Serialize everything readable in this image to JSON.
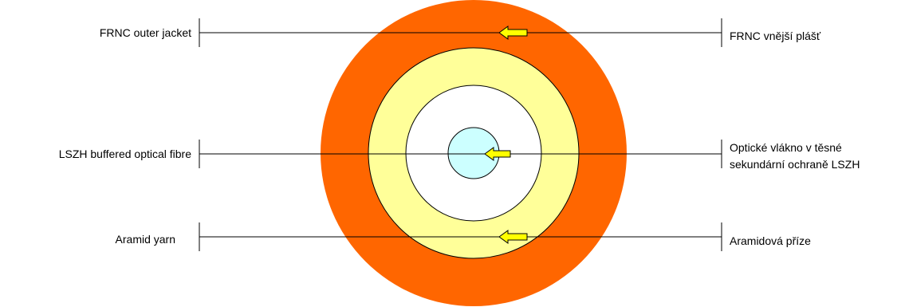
{
  "labels": {
    "outer_jacket_en": "FRNC outer jacket",
    "outer_jacket_cz": "FRNC vnější plášť",
    "buffered_fibre_en": "LSZH buffered optical fibre",
    "buffered_fibre_cz_line1": "Optické vlákno v těsné",
    "buffered_fibre_cz_line2": "sekundární ochraně LSZH",
    "aramid_en": "Aramid yarn",
    "aramid_cz": "Aramidová příze"
  },
  "colors": {
    "outer_jacket": "#ff6600",
    "aramid_yarn": "#ffff99",
    "inner_space": "#ffffff",
    "fibre_core": "#ccffff",
    "arrow_fill": "#ffff00",
    "line": "#000000"
  }
}
